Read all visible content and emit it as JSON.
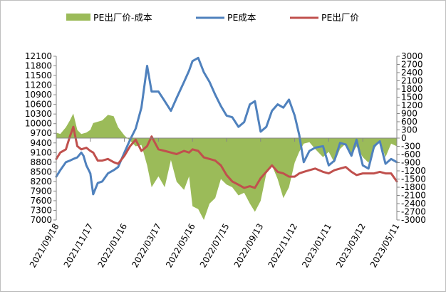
{
  "chart_data": {
    "type": "line+area",
    "title": "",
    "legend_position": "top",
    "series": [
      {
        "name": "PE出厂价-成本",
        "type": "area",
        "axis": "right",
        "color": "#9bbb59",
        "points": [
          [
            "2021/09/18",
            200
          ],
          [
            "2021/09/25",
            150
          ],
          [
            "2021/10/05",
            400
          ],
          [
            "2021/10/12",
            650
          ],
          [
            "2021/10/18",
            900
          ],
          [
            "2021/10/25",
            300
          ],
          [
            "2021/11/01",
            150
          ],
          [
            "2021/11/10",
            200
          ],
          [
            "2021/11/17",
            300
          ],
          [
            "2021/11/22",
            550
          ],
          [
            "2021/11/30",
            600
          ],
          [
            "2021/12/08",
            650
          ],
          [
            "2021/12/18",
            850
          ],
          [
            "2021/12/28",
            800
          ],
          [
            "2022/01/05",
            400
          ],
          [
            "2022/01/16",
            100
          ],
          [
            "2022/01/26",
            -100
          ],
          [
            "2022/02/05",
            -300
          ],
          [
            "2022/02/15",
            -250
          ],
          [
            "2022/02/25",
            -1000
          ],
          [
            "2022/03/05",
            -1800
          ],
          [
            "2022/03/17",
            -1400
          ],
          [
            "2022/03/28",
            -1800
          ],
          [
            "2022/04/08",
            -800
          ],
          [
            "2022/04/18",
            -1600
          ],
          [
            "2022/05/01",
            -1900
          ],
          [
            "2022/05/10",
            -1400
          ],
          [
            "2022/05/16",
            -2500
          ],
          [
            "2022/05/26",
            -2600
          ],
          [
            "2022/06/05",
            -3000
          ],
          [
            "2022/06/15",
            -2400
          ],
          [
            "2022/06/25",
            -2200
          ],
          [
            "2022/07/05",
            -1500
          ],
          [
            "2022/07/15",
            -1700
          ],
          [
            "2022/07/25",
            -1800
          ],
          [
            "2022/08/05",
            -2100
          ],
          [
            "2022/08/15",
            -2000
          ],
          [
            "2022/08/25",
            -2400
          ],
          [
            "2022/09/03",
            -2700
          ],
          [
            "2022/09/13",
            -2300
          ],
          [
            "2022/09/23",
            -1300
          ],
          [
            "2022/10/03",
            -1000
          ],
          [
            "2022/10/13",
            -1500
          ],
          [
            "2022/10/23",
            -2200
          ],
          [
            "2022/11/02",
            -1800
          ],
          [
            "2022/11/12",
            -900
          ],
          [
            "2022/11/20",
            -500
          ],
          [
            "2022/11/28",
            -200
          ],
          [
            "2022/12/08",
            -150
          ],
          [
            "2022/12/18",
            -400
          ],
          [
            "2023/01/01",
            -700
          ],
          [
            "2023/01/11",
            -500
          ],
          [
            "2023/01/21",
            -900
          ],
          [
            "2023/01/31",
            -400
          ],
          [
            "2023/02/10",
            -200
          ],
          [
            "2023/02/20",
            -600
          ],
          [
            "2023/03/01",
            -300
          ],
          [
            "2023/03/12",
            -700
          ],
          [
            "2023/03/22",
            -900
          ],
          [
            "2023/04/01",
            -400
          ],
          [
            "2023/04/11",
            -100
          ],
          [
            "2023/04/21",
            -700
          ],
          [
            "2023/05/01",
            -200
          ],
          [
            "2023/05/11",
            -300
          ]
        ]
      },
      {
        "name": "PE成本",
        "type": "line",
        "axis": "left",
        "color": "#4f81bd",
        "points": [
          [
            "2021/09/18",
            8350
          ],
          [
            "2021/09/25",
            8550
          ],
          [
            "2021/10/05",
            8800
          ],
          [
            "2021/10/12",
            8850
          ],
          [
            "2021/10/18",
            8900
          ],
          [
            "2021/10/25",
            8950
          ],
          [
            "2021/11/01",
            9100
          ],
          [
            "2021/11/05",
            9000
          ],
          [
            "2021/11/10",
            8700
          ],
          [
            "2021/11/17",
            8450
          ],
          [
            "2021/11/22",
            7800
          ],
          [
            "2021/11/30",
            8150
          ],
          [
            "2021/12/08",
            8200
          ],
          [
            "2021/12/18",
            8450
          ],
          [
            "2021/12/28",
            8550
          ],
          [
            "2022/01/05",
            8650
          ],
          [
            "2022/01/16",
            9100
          ],
          [
            "2022/01/26",
            9500
          ],
          [
            "2022/02/05",
            9850
          ],
          [
            "2022/02/15",
            10500
          ],
          [
            "2022/02/25",
            11800
          ],
          [
            "2022/03/05",
            11000
          ],
          [
            "2022/03/17",
            11000
          ],
          [
            "2022/03/28",
            10700
          ],
          [
            "2022/04/08",
            10400
          ],
          [
            "2022/04/18",
            10800
          ],
          [
            "2022/05/01",
            11300
          ],
          [
            "2022/05/10",
            11650
          ],
          [
            "2022/05/16",
            11950
          ],
          [
            "2022/05/26",
            12050
          ],
          [
            "2022/06/05",
            11600
          ],
          [
            "2022/06/15",
            11300
          ],
          [
            "2022/06/25",
            10900
          ],
          [
            "2022/07/05",
            10550
          ],
          [
            "2022/07/15",
            10250
          ],
          [
            "2022/07/25",
            10200
          ],
          [
            "2022/08/05",
            9900
          ],
          [
            "2022/08/15",
            10050
          ],
          [
            "2022/08/25",
            10600
          ],
          [
            "2022/09/03",
            10700
          ],
          [
            "2022/09/13",
            9750
          ],
          [
            "2022/09/23",
            9900
          ],
          [
            "2022/10/03",
            10400
          ],
          [
            "2022/10/13",
            10600
          ],
          [
            "2022/10/23",
            10500
          ],
          [
            "2022/11/02",
            10750
          ],
          [
            "2022/11/12",
            10250
          ],
          [
            "2022/11/20",
            9650
          ],
          [
            "2022/11/28",
            8800
          ],
          [
            "2022/12/08",
            9150
          ],
          [
            "2022/12/18",
            9250
          ],
          [
            "2023/01/01",
            9300
          ],
          [
            "2023/01/11",
            8700
          ],
          [
            "2023/01/21",
            8850
          ],
          [
            "2023/01/31",
            9400
          ],
          [
            "2023/02/10",
            9350
          ],
          [
            "2023/02/20",
            9000
          ],
          [
            "2023/03/01",
            9500
          ],
          [
            "2023/03/12",
            8700
          ],
          [
            "2023/03/22",
            8600
          ],
          [
            "2023/04/01",
            9300
          ],
          [
            "2023/04/11",
            9450
          ],
          [
            "2023/04/21",
            8750
          ],
          [
            "2023/05/01",
            8900
          ],
          [
            "2023/05/11",
            8800
          ]
        ]
      },
      {
        "name": "PE出厂价",
        "type": "line",
        "axis": "left",
        "color": "#c0504d",
        "points": [
          [
            "2021/09/18",
            8900
          ],
          [
            "2021/09/25",
            9100
          ],
          [
            "2021/10/05",
            9200
          ],
          [
            "2021/10/12",
            9600
          ],
          [
            "2021/10/18",
            9900
          ],
          [
            "2021/10/25",
            9300
          ],
          [
            "2021/11/01",
            9200
          ],
          [
            "2021/11/10",
            9250
          ],
          [
            "2021/11/17",
            9150
          ],
          [
            "2021/11/22",
            9100
          ],
          [
            "2021/11/30",
            8850
          ],
          [
            "2021/12/08",
            8850
          ],
          [
            "2021/12/18",
            8900
          ],
          [
            "2021/12/28",
            8800
          ],
          [
            "2022/01/05",
            8750
          ],
          [
            "2022/01/16",
            9000
          ],
          [
            "2022/01/26",
            9300
          ],
          [
            "2022/02/05",
            9500
          ],
          [
            "2022/02/15",
            9150
          ],
          [
            "2022/02/25",
            9300
          ],
          [
            "2022/03/05",
            9600
          ],
          [
            "2022/03/17",
            9200
          ],
          [
            "2022/03/28",
            9150
          ],
          [
            "2022/04/08",
            9100
          ],
          [
            "2022/04/18",
            9050
          ],
          [
            "2022/05/01",
            9150
          ],
          [
            "2022/05/10",
            9100
          ],
          [
            "2022/05/16",
            9200
          ],
          [
            "2022/05/26",
            9150
          ],
          [
            "2022/06/05",
            8950
          ],
          [
            "2022/06/15",
            8900
          ],
          [
            "2022/06/25",
            8850
          ],
          [
            "2022/07/05",
            8700
          ],
          [
            "2022/07/15",
            8400
          ],
          [
            "2022/07/25",
            8200
          ],
          [
            "2022/08/05",
            8100
          ],
          [
            "2022/08/15",
            8000
          ],
          [
            "2022/08/25",
            8050
          ],
          [
            "2022/09/03",
            8000
          ],
          [
            "2022/09/13",
            8300
          ],
          [
            "2022/09/23",
            8500
          ],
          [
            "2022/10/03",
            8700
          ],
          [
            "2022/10/13",
            8500
          ],
          [
            "2022/10/23",
            8450
          ],
          [
            "2022/11/02",
            8350
          ],
          [
            "2022/11/12",
            8350
          ],
          [
            "2022/11/20",
            8450
          ],
          [
            "2022/11/28",
            8500
          ],
          [
            "2022/12/08",
            8550
          ],
          [
            "2022/12/18",
            8600
          ],
          [
            "2023/01/01",
            8500
          ],
          [
            "2023/01/11",
            8450
          ],
          [
            "2023/01/21",
            8550
          ],
          [
            "2023/01/31",
            8600
          ],
          [
            "2023/02/10",
            8650
          ],
          [
            "2023/02/20",
            8500
          ],
          [
            "2023/03/01",
            8400
          ],
          [
            "2023/03/12",
            8450
          ],
          [
            "2023/03/22",
            8450
          ],
          [
            "2023/04/01",
            8450
          ],
          [
            "2023/04/11",
            8500
          ],
          [
            "2023/04/21",
            8450
          ],
          [
            "2023/05/01",
            8450
          ],
          [
            "2023/05/11",
            8200
          ]
        ]
      }
    ],
    "x_axis": {
      "start": "2021/09/18",
      "end": "2023/05/11",
      "tick_labels": [
        "2021/09/18",
        "2021/11/17",
        "2022/01/16",
        "2022/03/17",
        "2022/05/16",
        "2022/07/15",
        "2022/09/13",
        "2022/11/12",
        "2023/01/11",
        "2023/03/12",
        "2023/05/11"
      ]
    },
    "y_axis_left": {
      "min": 7000,
      "max": 12100,
      "tick_labels": [
        "12100",
        "11800",
        "11500",
        "11200",
        "10900",
        "10600",
        "10300",
        "10000",
        "9700",
        "9400",
        "9100",
        "8800",
        "8500",
        "8200",
        "7900",
        "7600",
        "7300",
        "7000"
      ]
    },
    "y_axis_right": {
      "min": -3000,
      "max": 3000,
      "tick_labels": [
        "3000",
        "2700",
        "2400",
        "2100",
        "1800",
        "1500",
        "1200",
        "900",
        "600",
        "300",
        "0",
        "-300",
        "-600",
        "-900",
        "-1200",
        "-1500",
        "-1800",
        "-2100",
        "-2400",
        "-2700",
        "-3000"
      ]
    },
    "gridlines": false
  }
}
